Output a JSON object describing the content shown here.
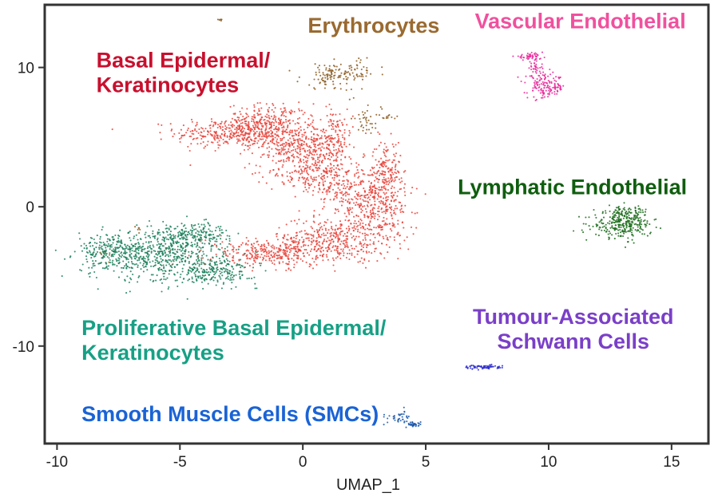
{
  "chart_data": {
    "type": "scatter",
    "title": "",
    "xlabel": "UMAP_1",
    "ylabel": "",
    "xlim": [
      -10.5,
      16.5
    ],
    "ylim": [
      -17,
      14.5
    ],
    "xticks": [
      -10,
      -5,
      0,
      5,
      10,
      15
    ],
    "yticks": [
      -10,
      0,
      10
    ],
    "xtick_labels": [
      "-10",
      "-5",
      "0",
      "5",
      "10",
      "15"
    ],
    "ytick_labels": [
      "-10",
      "0",
      "10"
    ],
    "grid": false,
    "legend": "none (clusters labelled directly on plot)",
    "series": [
      {
        "name": "Basal Epidermal/ Keratinocytes",
        "label_lines": [
          "Basal Epidermal/",
          "Keratinocytes"
        ],
        "color": "#e8433a",
        "label_color": "#c8102e",
        "label_anchor": [
          -8.4,
          10.0
        ],
        "n_points": 2600,
        "blobs": [
          {
            "cx": -2.6,
            "cy": 5.3,
            "sx": 1.5,
            "sy": 0.65,
            "w": 0.16
          },
          {
            "cx": -1.4,
            "cy": 6.2,
            "sx": 1.0,
            "sy": 0.7,
            "w": 0.08
          },
          {
            "cx": -0.4,
            "cy": 4.4,
            "sx": 1.0,
            "sy": 0.8,
            "w": 0.09
          },
          {
            "cx": 0.3,
            "cy": 2.6,
            "sx": 1.0,
            "sy": 1.0,
            "w": 0.09
          },
          {
            "cx": 1.2,
            "cy": 4.8,
            "sx": 0.5,
            "sy": 1.3,
            "w": 0.07
          },
          {
            "cx": 2.3,
            "cy": 1.0,
            "sx": 1.1,
            "sy": 1.3,
            "w": 0.12
          },
          {
            "cx": 3.4,
            "cy": 2.6,
            "sx": 0.35,
            "sy": 1.3,
            "w": 0.06
          },
          {
            "cx": 3.1,
            "cy": -0.8,
            "sx": 0.7,
            "sy": 1.3,
            "w": 0.07
          },
          {
            "cx": 1.2,
            "cy": -2.4,
            "sx": 1.4,
            "sy": 0.9,
            "w": 0.13
          },
          {
            "cx": -1.2,
            "cy": -3.3,
            "sx": 1.6,
            "sy": 0.6,
            "w": 0.13
          }
        ]
      },
      {
        "name": "Erythrocytes",
        "label_lines": [
          "Erythrocytes"
        ],
        "color": "#8b5a1f",
        "label_color": "#9a6a30",
        "label_anchor": [
          0.2,
          12.5
        ],
        "n_points": 210,
        "blobs": [
          {
            "cx": 1.1,
            "cy": 9.4,
            "sx": 0.7,
            "sy": 0.55,
            "w": 0.45
          },
          {
            "cx": 2.3,
            "cy": 9.8,
            "sx": 0.45,
            "sy": 0.5,
            "w": 0.2
          },
          {
            "cx": 2.6,
            "cy": 6.2,
            "sx": 0.35,
            "sy": 0.5,
            "w": 0.17
          },
          {
            "cx": 3.5,
            "cy": 6.4,
            "sx": 0.25,
            "sy": 0.12,
            "w": 0.05
          },
          {
            "cx": -3.4,
            "cy": 13.4,
            "sx": 0.15,
            "sy": 0.07,
            "w": 0.03
          },
          {
            "cx": -8.0,
            "cy": -3.4,
            "sx": 0.15,
            "sy": 0.22,
            "w": 0.04
          },
          {
            "cx": -6.7,
            "cy": -1.6,
            "sx": 0.1,
            "sy": 0.15,
            "w": 0.03
          },
          {
            "cx": 2.0,
            "cy": 8.4,
            "sx": 0.2,
            "sy": 0.4,
            "w": 0.03
          }
        ]
      },
      {
        "name": "Vascular Endothelial",
        "label_lines": [
          "Vascular Endothelial"
        ],
        "color": "#e7299a",
        "label_color": "#f0509e",
        "label_anchor": [
          7.0,
          12.8
        ],
        "n_points": 230,
        "blobs": [
          {
            "cx": 9.2,
            "cy": 10.8,
            "sx": 0.35,
            "sy": 0.12,
            "w": 0.2
          },
          {
            "cx": 9.5,
            "cy": 9.8,
            "sx": 0.2,
            "sy": 0.5,
            "w": 0.2
          },
          {
            "cx": 9.9,
            "cy": 8.6,
            "sx": 0.45,
            "sy": 0.5,
            "w": 0.6
          }
        ]
      },
      {
        "name": "Lymphatic Endothelial",
        "label_lines": [
          "Lymphatic Endothelial"
        ],
        "color": "#1a6b1a",
        "label_color": "#0f5e0f",
        "label_anchor": [
          6.3,
          0.9
        ],
        "n_points": 330,
        "blobs": [
          {
            "cx": 13.0,
            "cy": -1.3,
            "sx": 0.7,
            "sy": 0.55,
            "w": 0.8
          },
          {
            "cx": 13.2,
            "cy": -0.4,
            "sx": 0.5,
            "sy": 0.3,
            "w": 0.2
          }
        ]
      },
      {
        "name": "Proliferative Basal Epidermal/ Keratinocytes",
        "label_lines": [
          "Proliferative Basal Epidermal/",
          "Keratinocytes"
        ],
        "color": "#1a7f5a",
        "label_color": "#17a085",
        "label_anchor": [
          -9.0,
          -9.2
        ],
        "n_points": 1150,
        "blobs": [
          {
            "cx": -5.5,
            "cy": -3.6,
            "sx": 1.4,
            "sy": 1.1,
            "w": 0.45
          },
          {
            "cx": -7.7,
            "cy": -3.3,
            "sx": 0.9,
            "sy": 0.8,
            "w": 0.22
          },
          {
            "cx": -4.6,
            "cy": -2.0,
            "sx": 1.0,
            "sy": 0.5,
            "w": 0.18
          },
          {
            "cx": -3.4,
            "cy": -4.7,
            "sx": 0.9,
            "sy": 0.5,
            "w": 0.15
          }
        ]
      },
      {
        "name": "Tumour-Associated Schwann Cells",
        "label_lines": [
          "Tumour-Associated",
          "Schwann Cells"
        ],
        "color": "#2e2ecc",
        "label_color": "#7a3fc8",
        "label_anchor": [
          11.0,
          -8.4
        ],
        "n_points": 75,
        "blobs": [
          {
            "cx": 7.3,
            "cy": -11.5,
            "sx": 0.45,
            "sy": 0.09,
            "w": 1.0
          }
        ]
      },
      {
        "name": "Smooth Muscle Cells (SMCs)",
        "label_lines": [
          "Smooth Muscle Cells (SMCs)"
        ],
        "color": "#1a56a8",
        "label_color": "#1a63d6",
        "label_anchor": [
          -9.0,
          -15.4
        ],
        "n_points": 70,
        "blobs": [
          {
            "cx": 3.9,
            "cy": -15.2,
            "sx": 0.35,
            "sy": 0.28,
            "w": 0.5
          },
          {
            "cx": 4.5,
            "cy": -15.6,
            "sx": 0.2,
            "sy": 0.12,
            "w": 0.5
          }
        ]
      }
    ]
  }
}
